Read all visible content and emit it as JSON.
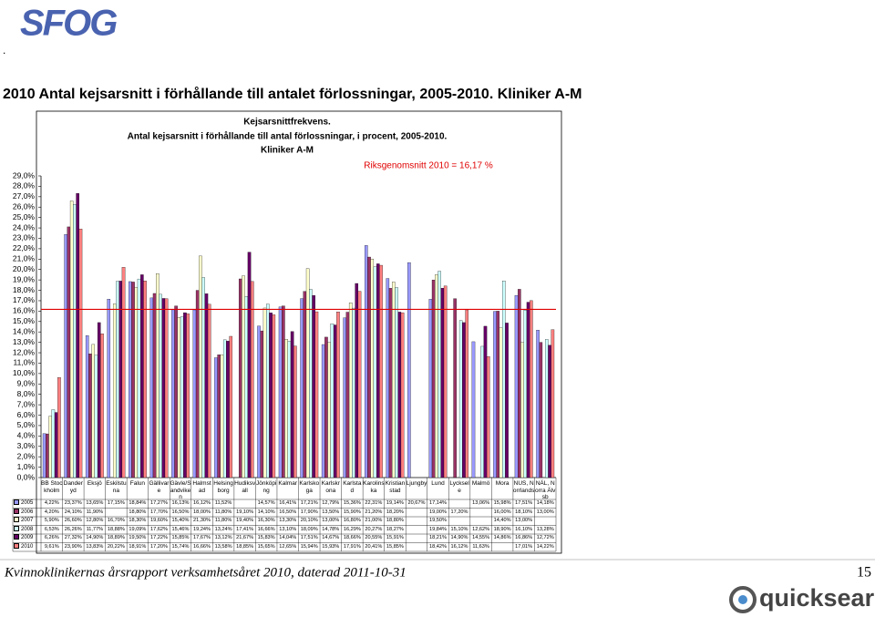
{
  "page": {
    "logo": "SFOG",
    "dot": ".",
    "heading": "2010 Antal kejsarsnitt i förhållande till antalet förlossningar, 2005-2010. Kliniker A-M",
    "footer": "Kvinnoklinikernas årsrapport verksamhetsåret 2010, daterad 2011-10-31",
    "page_number": "15",
    "brand": "quicksearch"
  },
  "chart_data": {
    "type": "bar",
    "title": [
      "Kejsarsnittfrekvens.",
      "Antal kejsarsnitt i förhållande  till antal förlossningar, i procent, 2005-2010.",
      "Kliniker A-M"
    ],
    "categories": [
      "BB Stockholm",
      "Danderyd",
      "Eksjö",
      "Eskilstuna",
      "Falun",
      "Gällivare",
      "Gävle/Sandviken",
      "Halmstad",
      "Helsingborg",
      "Hudiksvall",
      "Jönköping",
      "Kalmar",
      "Karlskoga",
      "Karlskrona",
      "Karlstad",
      "Karolinska",
      "Kristianstad",
      "Ljungby",
      "Lund",
      "Lycksele",
      "Malmö",
      "Mora",
      "NUS, Norrlands",
      "NÄL, Norra Älvsb"
    ],
    "series": [
      {
        "name": "2005",
        "color": "#9999ff",
        "values": [
          4.22,
          23.37,
          13.65,
          17.15,
          18.84,
          17.27,
          16.13,
          16.12,
          11.52,
          null,
          14.57,
          16.41,
          17.21,
          12.79,
          15.36,
          22.31,
          19.14,
          20.67,
          17.14,
          null,
          13.06,
          15.98,
          17.51,
          14.18
        ],
        "value_labels": [
          "4,22%",
          "23,37%",
          "13,65%",
          "17,15%",
          "18,84%",
          "17,27%",
          "16,13%",
          "16,12%",
          "11,52%",
          null,
          "14,57%",
          "16,41%",
          "17,21%",
          "12,79%",
          "15,36%",
          "22,31%",
          "19,14%",
          "20,67%",
          "17,14%",
          null,
          "13,06%",
          "15,98%",
          "17,51%",
          "14,18%"
        ]
      },
      {
        "name": "2006",
        "color": "#993366",
        "values": [
          4.2,
          24.1,
          11.9,
          null,
          18.8,
          17.7,
          16.5,
          18.0,
          11.8,
          19.1,
          14.1,
          16.5,
          17.9,
          13.5,
          15.9,
          21.2,
          18.2,
          null,
          19.0,
          17.2,
          null,
          16.0,
          18.1,
          13.0
        ],
        "value_labels": [
          "4,20%",
          "24,10%",
          "11,90%",
          null,
          "18,80%",
          "17,70%",
          "16,50%",
          "18,00%",
          "11,80%",
          "19,10%",
          "14,10%",
          "16,50%",
          "17,90%",
          "13,50%",
          "15,90%",
          "21,20%",
          "18,20%",
          null,
          "19,00%",
          "17,20%",
          null,
          "16,00%",
          "18,10%",
          "13,00%"
        ]
      },
      {
        "name": "2007",
        "color": "#ffffcc",
        "values": [
          5.9,
          26.6,
          12.8,
          16.7,
          18.3,
          19.6,
          15.4,
          21.3,
          11.8,
          19.4,
          16.3,
          13.3,
          20.1,
          13.0,
          16.8,
          21.0,
          18.8,
          null,
          19.5,
          null,
          null,
          14.4,
          13.0,
          null
        ],
        "value_labels": [
          "5,90%",
          "26,60%",
          "12,80%",
          "16,70%",
          "18,30%",
          "19,60%",
          "15,40%",
          "21,30%",
          "11,80%",
          "19,40%",
          "16,30%",
          "13,30%",
          "20,10%",
          "13,00%",
          "16,80%",
          "21,00%",
          "18,80%",
          null,
          "19,50%",
          null,
          null,
          "14,40%",
          "13,00%",
          null
        ]
      },
      {
        "name": "2008",
        "color": "#ccffff",
        "values": [
          6.53,
          26.26,
          11.77,
          18.88,
          19.09,
          17.62,
          15.46,
          19.24,
          13.24,
          17.41,
          16.66,
          13.1,
          18.09,
          14.78,
          16.29,
          20.27,
          18.27,
          null,
          19.84,
          15.1,
          12.62,
          18.9,
          16.1,
          13.28
        ],
        "value_labels": [
          "6,53%",
          "26,26%",
          "11,77%",
          "18,88%",
          "19,09%",
          "17,62%",
          "15,46%",
          "19,24%",
          "13,24%",
          "17,41%",
          "16,66%",
          "13,10%",
          "18,09%",
          "14,78%",
          "16,29%",
          "20,27%",
          "18,27%",
          null,
          "19,84%",
          "15,10%",
          "12,62%",
          "18,90%",
          "16,10%",
          "13,28%"
        ]
      },
      {
        "name": "2009",
        "color": "#660066",
        "values": [
          6.26,
          27.32,
          14.9,
          18.89,
          19.5,
          17.22,
          15.85,
          17.67,
          13.12,
          21.67,
          15.83,
          14.04,
          17.51,
          14.67,
          18.66,
          20.55,
          15.91,
          null,
          18.21,
          14.9,
          14.55,
          14.86,
          16.86,
          12.72
        ],
        "value_labels": [
          "6,26%",
          "27,32%",
          "14,90%",
          "18,89%",
          "19,50%",
          "17,22%",
          "15,85%",
          "17,67%",
          "13,12%",
          "21,67%",
          "15,83%",
          "14,04%",
          "17,51%",
          "14,67%",
          "18,66%",
          "20,55%",
          "15,91%",
          null,
          "18,21%",
          "14,90%",
          "14,55%",
          "14,86%",
          "16,86%",
          "12,72%"
        ]
      },
      {
        "name": "2010",
        "color": "#ff8080",
        "values": [
          9.61,
          23.9,
          13.83,
          20.22,
          18.91,
          17.2,
          15.74,
          16.66,
          13.58,
          18.85,
          15.65,
          12.65,
          15.94,
          15.93,
          17.91,
          20.41,
          15.85,
          null,
          18.42,
          16.12,
          11.63,
          null,
          17.01,
          14.22
        ],
        "value_labels": [
          "9,61%",
          "23,90%",
          "13,83%",
          "20,22%",
          "18,91%",
          "17,20%",
          "15,74%",
          "16,66%",
          "13,58%",
          "18,85%",
          "15,65%",
          "12,65%",
          "15,94%",
          "15,93%",
          "17,91%",
          "20,41%",
          "15,85%",
          null,
          "18,42%",
          "16,12%",
          "11,63%",
          null,
          "17,01%",
          "14,22%"
        ]
      }
    ],
    "ylim": [
      0,
      29
    ],
    "yticks": [
      {
        "value": 0,
        "label": "0,0%"
      },
      {
        "value": 1,
        "label": "1,0%"
      },
      {
        "value": 2,
        "label": "2,0%"
      },
      {
        "value": 3,
        "label": "3,0%"
      },
      {
        "value": 4,
        "label": "4,0%"
      },
      {
        "value": 5,
        "label": "5,0%"
      },
      {
        "value": 6,
        "label": "6,0%"
      },
      {
        "value": 7,
        "label": "7,0%"
      },
      {
        "value": 8,
        "label": "8,0%"
      },
      {
        "value": 9,
        "label": "9,0%"
      },
      {
        "value": 10,
        "label": "10,0%"
      },
      {
        "value": 11,
        "label": "11,0%"
      },
      {
        "value": 12,
        "label": "12,0%"
      },
      {
        "value": 13,
        "label": "13,0%"
      },
      {
        "value": 14,
        "label": "14,0%"
      },
      {
        "value": 15,
        "label": "15,0%"
      },
      {
        "value": 16,
        "label": "16,0%"
      },
      {
        "value": 17,
        "label": "17,0%"
      },
      {
        "value": 18,
        "label": "18,0%"
      },
      {
        "value": 19,
        "label": "19,0%"
      },
      {
        "value": 20,
        "label": "20,0%"
      },
      {
        "value": 21,
        "label": "21,0%"
      },
      {
        "value": 22,
        "label": "22,0%"
      },
      {
        "value": 23,
        "label": "23,0%"
      },
      {
        "value": 24,
        "label": "24,0%"
      },
      {
        "value": 25,
        "label": "25,0%"
      },
      {
        "value": 26,
        "label": "26,0%"
      },
      {
        "value": 27,
        "label": "27,0%"
      },
      {
        "value": 28,
        "label": "28,0%"
      },
      {
        "value": 29,
        "label": "29,0%"
      }
    ],
    "grid": false,
    "data_table": true,
    "reference_line": {
      "value": 16.17,
      "label": "Riksgenomsnitt 2010 = 16,17 %",
      "color": "#e00000"
    }
  }
}
